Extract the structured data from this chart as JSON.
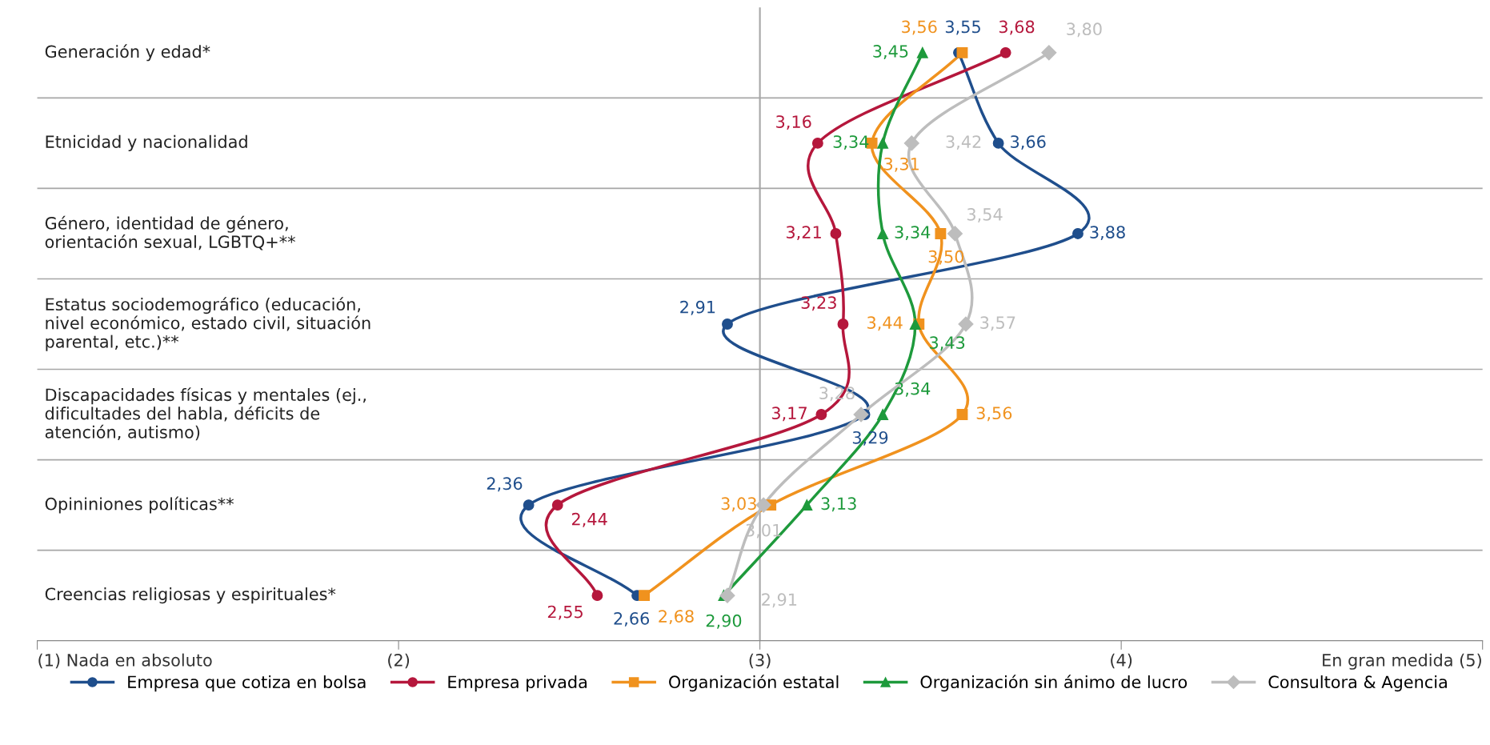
{
  "chart_data": {
    "type": "line",
    "orientation": "horizontal",
    "categories": [
      "Generación y edad*",
      "Etnicidad y nacionalidad",
      "Género, identidad de género,\norientación sexual, LGBTQ+**",
      "Estatus sociodemográfico (educación,\nnivel económico, estado civil, situación\nparental, etc.)**",
      "Discapacidades físicas y mentales (ej.,\ndificultades del habla, déficits de\natención, autismo)",
      "Opininiones políticas**",
      "Creencias religiosas y espirituales*"
    ],
    "series": [
      {
        "name": "Empresa que cotiza en bolsa",
        "color": "#1f4e8c",
        "marker": "circle",
        "values": [
          3.55,
          3.66,
          3.88,
          2.91,
          3.29,
          2.36,
          2.66
        ],
        "value_labels": [
          "3,55",
          "3,66",
          "3,88",
          "2,91",
          "3,29",
          "2,36",
          "2,66"
        ]
      },
      {
        "name": "Empresa privada",
        "color": "#b5173c",
        "marker": "circle",
        "values": [
          3.68,
          3.16,
          3.21,
          3.23,
          3.17,
          2.44,
          2.55
        ],
        "value_labels": [
          "3,68",
          "3,16",
          "3,21",
          "3,23",
          "3,17",
          "2,44",
          "2,55"
        ]
      },
      {
        "name": "Organización estatal",
        "color": "#f0921e",
        "marker": "square",
        "values": [
          3.56,
          3.31,
          3.5,
          3.44,
          3.56,
          3.03,
          2.68
        ],
        "value_labels": [
          "3,56",
          "3,31",
          "3,50",
          "3,44",
          "3,56",
          "3,03",
          "2,68"
        ]
      },
      {
        "name": "Organización sin ánimo de lucro",
        "color": "#1e9a3c",
        "marker": "triangle",
        "values": [
          3.45,
          3.34,
          3.34,
          3.43,
          3.34,
          3.13,
          2.9
        ],
        "value_labels": [
          "3,45",
          "3,34",
          "3,34",
          "3,43",
          "3,34",
          "3,13",
          "2,90"
        ]
      },
      {
        "name": "Consultora & Agencia",
        "color": "#bdbdbd",
        "marker": "diamond",
        "values": [
          3.8,
          3.42,
          3.54,
          3.57,
          3.28,
          3.01,
          2.91
        ],
        "value_labels": [
          "3,80",
          "3,42",
          "3,54",
          "3,57",
          "3,28",
          "3,01",
          "2,91"
        ]
      }
    ],
    "xlim": [
      1,
      5
    ],
    "xticks": [
      {
        "value": 1,
        "label": "(1) Nada en absoluto"
      },
      {
        "value": 2,
        "label": "(2)"
      },
      {
        "value": 3,
        "label": "(3)"
      },
      {
        "value": 4,
        "label": "(4)"
      },
      {
        "value": 5,
        "label": "En gran medida (5)"
      }
    ],
    "ref_lines": [
      {
        "axis": "x",
        "value": 3,
        "color": "#a6a6a6"
      }
    ],
    "grid": "y",
    "legend": "bottom"
  }
}
